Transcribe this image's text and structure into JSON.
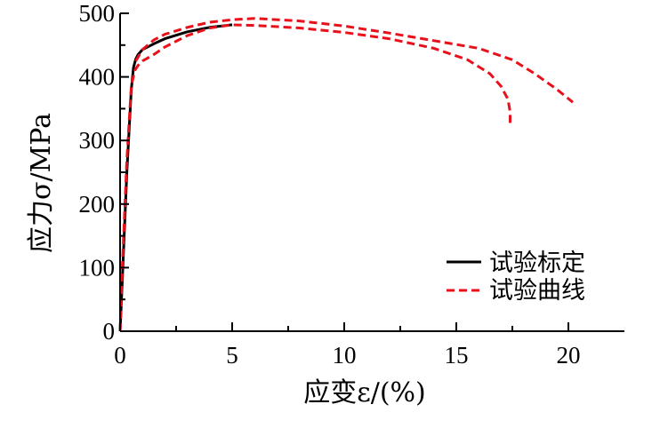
{
  "chart_data": {
    "type": "line",
    "xlabel": "应变ε/(%)",
    "ylabel": "应力σ/MPa",
    "xlim": [
      0,
      22.5
    ],
    "ylim": [
      0,
      500
    ],
    "xticks": [
      0,
      5,
      10,
      15,
      20
    ],
    "yticks": [
      0,
      100,
      200,
      300,
      400,
      500
    ],
    "xtick_labels": [
      "0",
      "5",
      "10",
      "15",
      "20"
    ],
    "ytick_labels": [
      "0",
      "100",
      "200",
      "300",
      "400",
      "500"
    ],
    "legend_position": "lower-right",
    "grid": false,
    "series": [
      {
        "name": "试验标定",
        "style": "solid",
        "color": "#000000",
        "x": [
          0,
          0.1,
          0.3,
          0.5,
          0.6,
          0.7,
          0.8,
          1.0,
          1.5,
          2.0,
          3.0,
          4.0,
          5.0
        ],
        "y": [
          0,
          80,
          250,
          380,
          415,
          428,
          435,
          443,
          452,
          460,
          471,
          478,
          482
        ]
      },
      {
        "name": "试验曲线",
        "style": "dashed",
        "color": "#e8101a",
        "x": [
          0,
          0.1,
          0.3,
          0.5,
          0.65,
          0.8,
          1.0,
          1.5,
          2.0,
          3.0,
          4.0,
          5.0,
          6.0,
          8.0,
          10.0,
          12.0,
          14.0,
          15.5,
          16.5,
          17.0,
          17.3,
          17.4,
          17.4
        ],
        "y": [
          0,
          100,
          270,
          385,
          410,
          418,
          425,
          435,
          447,
          465,
          477,
          482,
          481,
          477,
          470,
          460,
          445,
          427,
          405,
          385,
          365,
          345,
          325
        ]
      },
      {
        "name": "",
        "style": "dashed",
        "color": "#e8101a",
        "x": [
          0.7,
          1.0,
          1.5,
          2.0,
          3.0,
          4.0,
          5.0,
          6.0,
          8.0,
          10.0,
          12.0,
          14.0,
          16.0,
          17.5,
          18.5,
          19.5,
          20.2
        ],
        "y": [
          425,
          443,
          458,
          467,
          478,
          486,
          490,
          492,
          488,
          480,
          469,
          457,
          445,
          427,
          405,
          380,
          360
        ]
      }
    ]
  }
}
